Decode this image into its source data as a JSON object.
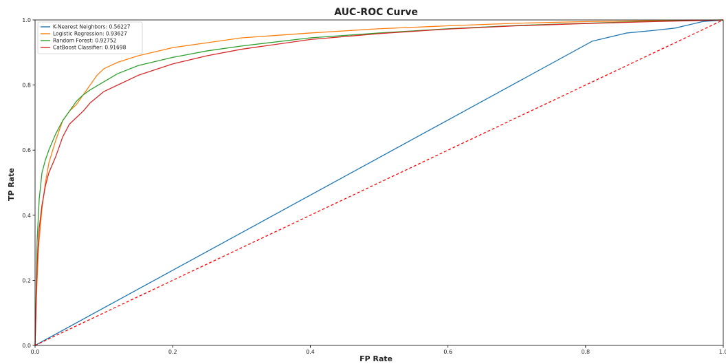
{
  "chart_data": {
    "type": "line",
    "title": "AUC-ROC Curve",
    "xlabel": "FP Rate",
    "ylabel": "TP Rate",
    "xlim": [
      0,
      1
    ],
    "ylim": [
      0,
      1
    ],
    "xticks": [
      "0.0",
      "0.2",
      "0.4",
      "0.6",
      "0.8",
      "1.0"
    ],
    "yticks": [
      "0.0",
      "0.2",
      "0.4",
      "0.6",
      "0.8",
      "1.0"
    ],
    "grid": false,
    "legend_position": "top-left",
    "series": [
      {
        "name": "K-Nearest Neighbors: 0.56227",
        "color": "#1f77b4",
        "x": [
          0,
          0.81,
          0.83,
          0.86,
          0.9,
          0.93,
          0.95,
          0.97,
          1.0
        ],
        "y": [
          0,
          0.935,
          0.945,
          0.96,
          0.968,
          0.975,
          0.985,
          0.995,
          1.0
        ]
      },
      {
        "name": "Logistic Regression: 0.93627",
        "color": "#ff7f0e",
        "x": [
          0,
          0.002,
          0.005,
          0.01,
          0.015,
          0.02,
          0.03,
          0.04,
          0.05,
          0.06,
          0.07,
          0.08,
          0.09,
          0.1,
          0.12,
          0.15,
          0.2,
          0.25,
          0.3,
          0.4,
          0.5,
          0.6,
          0.7,
          0.8,
          0.9,
          1.0
        ],
        "y": [
          0,
          0.15,
          0.3,
          0.42,
          0.5,
          0.56,
          0.63,
          0.69,
          0.72,
          0.74,
          0.77,
          0.8,
          0.83,
          0.85,
          0.87,
          0.89,
          0.915,
          0.93,
          0.945,
          0.96,
          0.973,
          0.982,
          0.99,
          0.995,
          0.998,
          1.0
        ]
      },
      {
        "name": "Random Forest: 0.92752",
        "color": "#2ca02c",
        "x": [
          0,
          0.003,
          0.006,
          0.01,
          0.015,
          0.02,
          0.03,
          0.04,
          0.05,
          0.06,
          0.07,
          0.08,
          0.1,
          0.12,
          0.15,
          0.2,
          0.25,
          0.3,
          0.4,
          0.5,
          0.6,
          0.7,
          0.8,
          0.9,
          1.0
        ],
        "y": [
          0,
          0.32,
          0.45,
          0.53,
          0.57,
          0.6,
          0.65,
          0.69,
          0.72,
          0.75,
          0.77,
          0.785,
          0.81,
          0.835,
          0.86,
          0.885,
          0.905,
          0.92,
          0.945,
          0.96,
          0.973,
          0.983,
          0.99,
          0.996,
          1.0
        ]
      },
      {
        "name": "CatBoost Classifier: 0.91698",
        "color": "#d62728",
        "x": [
          0,
          0.003,
          0.006,
          0.01,
          0.015,
          0.02,
          0.03,
          0.04,
          0.05,
          0.06,
          0.07,
          0.08,
          0.1,
          0.12,
          0.15,
          0.2,
          0.25,
          0.3,
          0.4,
          0.5,
          0.6,
          0.7,
          0.8,
          0.9,
          1.0
        ],
        "y": [
          0,
          0.25,
          0.36,
          0.43,
          0.49,
          0.53,
          0.58,
          0.64,
          0.68,
          0.7,
          0.72,
          0.745,
          0.78,
          0.8,
          0.83,
          0.865,
          0.89,
          0.91,
          0.94,
          0.958,
          0.972,
          0.982,
          0.989,
          0.995,
          1.0
        ]
      },
      {
        "name": "",
        "color": "#ff0000",
        "style": "dashed",
        "x": [
          0,
          1
        ],
        "y": [
          0,
          1
        ]
      }
    ]
  }
}
